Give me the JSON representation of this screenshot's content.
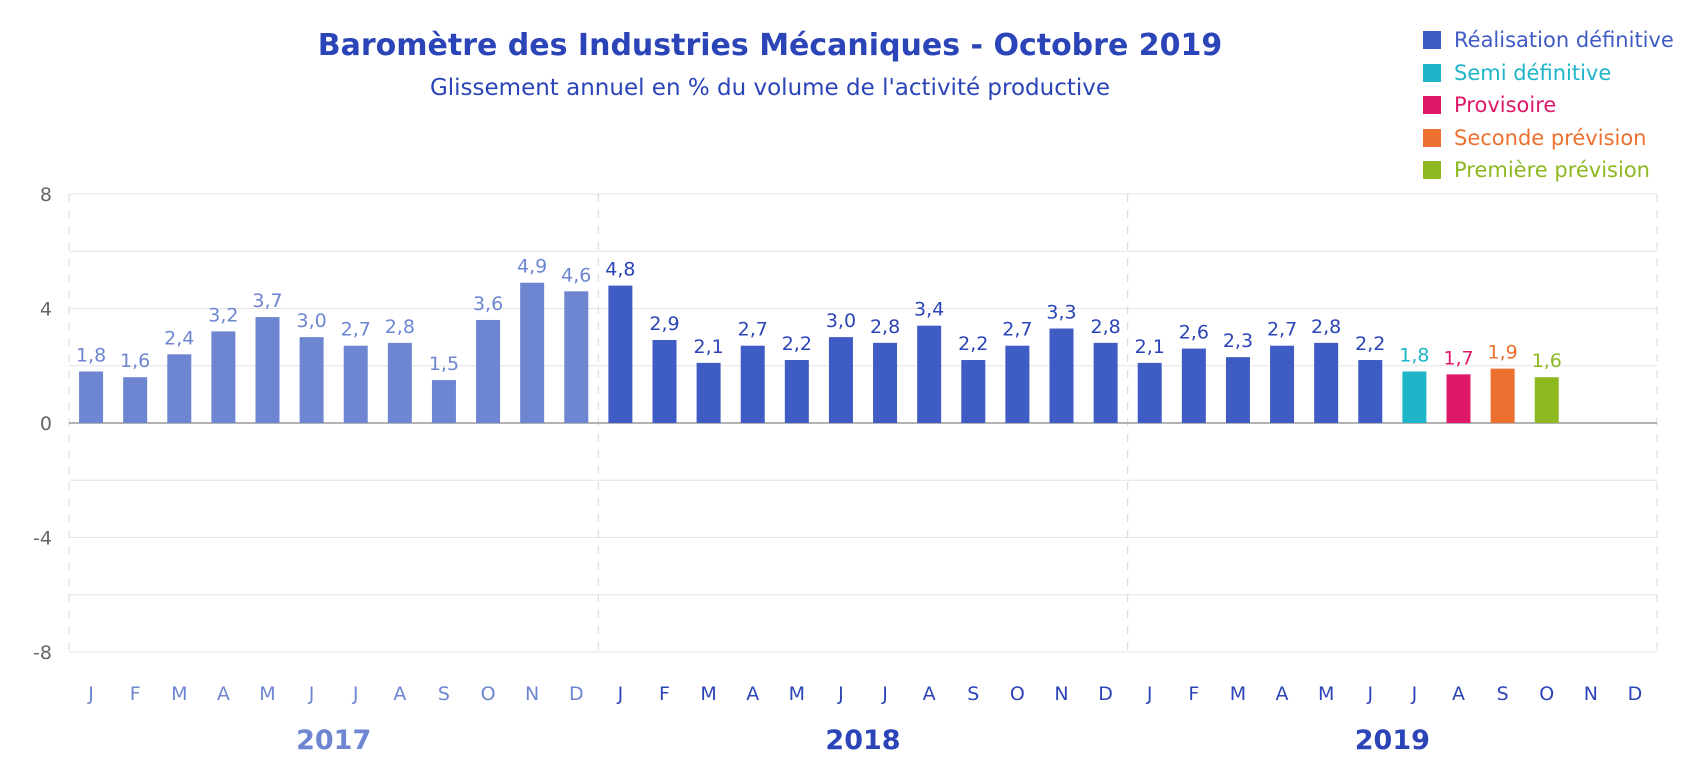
{
  "title": "Baromètre des Industries Mécaniques - Octobre 2019",
  "subtitle": "Glissement annuel en % du volume de l'activité productive",
  "legend": [
    {
      "label": "Réalisation définitive",
      "color": "#3f5bc4"
    },
    {
      "label": "Semi définitive",
      "color": "#1fb5c9"
    },
    {
      "label": "Provisoire",
      "color": "#e0186a"
    },
    {
      "label": "Seconde prévision",
      "color": "#ec7030"
    },
    {
      "label": "Première prévision",
      "color": "#8db81f"
    }
  ],
  "chart_data": {
    "type": "bar",
    "title": "Baromètre des Industries Mécaniques - Octobre 2019",
    "subtitle": "Glissement annuel en % du volume de l'activité productive",
    "ylim": [
      -8,
      8
    ],
    "yticks": [
      8,
      4,
      0,
      -4,
      -8
    ],
    "grid": true,
    "legend_position": "top-right",
    "categories": [
      "J",
      "F",
      "M",
      "A",
      "M",
      "J",
      "J",
      "A",
      "S",
      "O",
      "N",
      "D",
      "J",
      "F",
      "M",
      "A",
      "M",
      "J",
      "J",
      "A",
      "S",
      "O",
      "N",
      "D",
      "J",
      "F",
      "M",
      "A",
      "M",
      "J",
      "J",
      "A",
      "S",
      "O",
      "N",
      "D"
    ],
    "years": [
      "2017",
      "2018",
      "2019"
    ],
    "values": [
      1.8,
      1.6,
      2.4,
      3.2,
      3.7,
      3.0,
      2.7,
      2.8,
      1.5,
      3.6,
      4.9,
      4.6,
      4.8,
      2.9,
      2.1,
      2.7,
      2.2,
      3.0,
      2.8,
      3.4,
      2.2,
      2.7,
      3.3,
      2.8,
      2.1,
      2.6,
      2.3,
      2.7,
      2.8,
      2.2,
      1.8,
      1.7,
      1.9,
      1.6,
      null,
      null
    ],
    "value_labels": [
      "1,8",
      "1,6",
      "2,4",
      "3,2",
      "3,7",
      "3,0",
      "2,7",
      "2,8",
      "1,5",
      "3,6",
      "4,9",
      "4,6",
      "4,8",
      "2,9",
      "2,1",
      "2,7",
      "2,2",
      "3,0",
      "2,8",
      "3,4",
      "2,2",
      "2,7",
      "3,3",
      "2,8",
      "2,1",
      "2,6",
      "2,3",
      "2,7",
      "2,8",
      "2,2",
      "1,8",
      "1,7",
      "1,9",
      "1,6",
      "",
      ""
    ],
    "status": [
      "Réalisation définitive",
      "Réalisation définitive",
      "Réalisation définitive",
      "Réalisation définitive",
      "Réalisation définitive",
      "Réalisation définitive",
      "Réalisation définitive",
      "Réalisation définitive",
      "Réalisation définitive",
      "Réalisation définitive",
      "Réalisation définitive",
      "Réalisation définitive",
      "Réalisation définitive",
      "Réalisation définitive",
      "Réalisation définitive",
      "Réalisation définitive",
      "Réalisation définitive",
      "Réalisation définitive",
      "Réalisation définitive",
      "Réalisation définitive",
      "Réalisation définitive",
      "Réalisation définitive",
      "Réalisation définitive",
      "Réalisation définitive",
      "Réalisation définitive",
      "Réalisation définitive",
      "Réalisation définitive",
      "Réalisation définitive",
      "Réalisation définitive",
      "Réalisation définitive",
      "Semi définitive",
      "Provisoire",
      "Seconde prévision",
      "Première prévision",
      null,
      null
    ],
    "bar_colors": [
      "#6e86d2",
      "#6e86d2",
      "#6e86d2",
      "#6e86d2",
      "#6e86d2",
      "#6e86d2",
      "#6e86d2",
      "#6e86d2",
      "#6e86d2",
      "#6e86d2",
      "#6e86d2",
      "#6e86d2",
      "#3f5bc4",
      "#3f5bc4",
      "#3f5bc4",
      "#3f5bc4",
      "#3f5bc4",
      "#3f5bc4",
      "#3f5bc4",
      "#3f5bc4",
      "#3f5bc4",
      "#3f5bc4",
      "#3f5bc4",
      "#3f5bc4",
      "#3f5bc4",
      "#3f5bc4",
      "#3f5bc4",
      "#3f5bc4",
      "#3f5bc4",
      "#3f5bc4",
      "#1fb5c9",
      "#e0186a",
      "#ec7030",
      "#8db81f",
      null,
      null
    ],
    "label_colors": [
      "#6e86d2",
      "#6e86d2",
      "#6e86d2",
      "#6e86d2",
      "#6e86d2",
      "#6e86d2",
      "#6e86d2",
      "#6e86d2",
      "#6e86d2",
      "#6e86d2",
      "#6e86d2",
      "#6e86d2",
      "#2b44b8",
      "#2b44b8",
      "#2b44b8",
      "#2b44b8",
      "#2b44b8",
      "#2b44b8",
      "#2b44b8",
      "#2b44b8",
      "#2b44b8",
      "#2b44b8",
      "#2b44b8",
      "#2b44b8",
      "#2b44b8",
      "#2b44b8",
      "#2b44b8",
      "#2b44b8",
      "#2b44b8",
      "#2b44b8",
      "#1fb5c9",
      "#e0186a",
      "#ec7030",
      "#8db81f",
      null,
      null
    ],
    "month_label_colors": [
      "#6e86d2",
      "#2b44b8",
      "#2b44b8"
    ],
    "year_label_colors": [
      "#6e86d2",
      "#2b44b8",
      "#2b44b8"
    ]
  }
}
